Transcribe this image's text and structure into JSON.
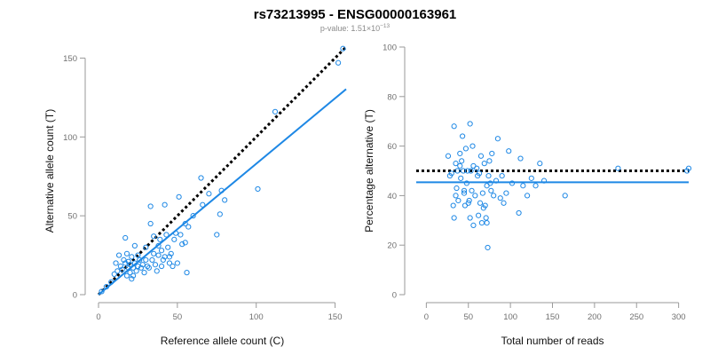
{
  "header": {
    "title": "rs73213995 - ENSG00000163961",
    "pvalue_prefix": "p-value: 1.51×10",
    "pvalue_exponent": "−13"
  },
  "chart_data": [
    {
      "type": "scatter",
      "title": "",
      "xlabel": "Reference allele count (C)",
      "ylabel": "Alternative allele count (T)",
      "xlim": [
        0,
        157
      ],
      "ylim": [
        0,
        157
      ],
      "xticks": [
        0,
        50,
        100,
        150
      ],
      "yticks": [
        0,
        50,
        100,
        150
      ],
      "grid": false,
      "marker_color": "#1e88e5",
      "points": [
        [
          2,
          2
        ],
        [
          5,
          5
        ],
        [
          8,
          8
        ],
        [
          10,
          13
        ],
        [
          11,
          20
        ],
        [
          12,
          15
        ],
        [
          13,
          25
        ],
        [
          14,
          18
        ],
        [
          15,
          16
        ],
        [
          16,
          22
        ],
        [
          17,
          36
        ],
        [
          17,
          20
        ],
        [
          18,
          12
        ],
        [
          18,
          26
        ],
        [
          19,
          17
        ],
        [
          19,
          21
        ],
        [
          20,
          14
        ],
        [
          20,
          19
        ],
        [
          21,
          10
        ],
        [
          21,
          24
        ],
        [
          22,
          12
        ],
        [
          22,
          17
        ],
        [
          23,
          31
        ],
        [
          23,
          20
        ],
        [
          24,
          15
        ],
        [
          25,
          18
        ],
        [
          25,
          25
        ],
        [
          26,
          22
        ],
        [
          27,
          17
        ],
        [
          28,
          19
        ],
        [
          29,
          14
        ],
        [
          30,
          30
        ],
        [
          30,
          22
        ],
        [
          31,
          18
        ],
        [
          32,
          17
        ],
        [
          33,
          56
        ],
        [
          33,
          45
        ],
        [
          34,
          22
        ],
        [
          35,
          37
        ],
        [
          35,
          26
        ],
        [
          36,
          19
        ],
        [
          37,
          15
        ],
        [
          38,
          25
        ],
        [
          38,
          31
        ],
        [
          39,
          35
        ],
        [
          40,
          28
        ],
        [
          40,
          18
        ],
        [
          41,
          22
        ],
        [
          42,
          57
        ],
        [
          42,
          24
        ],
        [
          43,
          38
        ],
        [
          44,
          30
        ],
        [
          45,
          20
        ],
        [
          45,
          24
        ],
        [
          46,
          26
        ],
        [
          47,
          18
        ],
        [
          48,
          35
        ],
        [
          49,
          39
        ],
        [
          50,
          20
        ],
        [
          51,
          62
        ],
        [
          52,
          38
        ],
        [
          53,
          32
        ],
        [
          55,
          45
        ],
        [
          55,
          33
        ],
        [
          56,
          14
        ],
        [
          57,
          43
        ],
        [
          60,
          50
        ],
        [
          65,
          74
        ],
        [
          66,
          57
        ],
        [
          70,
          64
        ],
        [
          75,
          38
        ],
        [
          77,
          51
        ],
        [
          78,
          66
        ],
        [
          80,
          60
        ],
        [
          101,
          67
        ],
        [
          112,
          116
        ],
        [
          152,
          147
        ],
        [
          155,
          156
        ]
      ],
      "lines": [
        {
          "label": "",
          "style": "dotted",
          "color": "#000000",
          "slope": 1.0,
          "intercept": 0
        },
        {
          "label": "",
          "style": "solid",
          "color": "#1e88e5",
          "slope": 0.83,
          "intercept": 0
        }
      ]
    },
    {
      "type": "scatter",
      "title": "",
      "xlabel": "Total number of reads",
      "ylabel": "Percentage alternative (T)",
      "xlim": [
        -12,
        312
      ],
      "ylim": [
        0,
        100
      ],
      "xticks": [
        0,
        50,
        100,
        150,
        200,
        250,
        300
      ],
      "yticks": [
        0,
        20,
        40,
        60,
        80,
        100
      ],
      "grid": false,
      "marker_color": "#1e88e5",
      "points": [
        [
          26,
          56
        ],
        [
          28,
          48
        ],
        [
          30,
          49
        ],
        [
          32,
          36
        ],
        [
          33,
          31
        ],
        [
          33,
          68
        ],
        [
          35,
          40
        ],
        [
          35,
          53
        ],
        [
          36,
          43
        ],
        [
          37,
          50
        ],
        [
          38,
          38
        ],
        [
          40,
          52
        ],
        [
          40,
          57
        ],
        [
          41,
          47
        ],
        [
          42,
          54
        ],
        [
          43,
          64
        ],
        [
          44,
          50
        ],
        [
          45,
          42
        ],
        [
          45,
          41
        ],
        [
          46,
          36
        ],
        [
          47,
          59
        ],
        [
          48,
          45
        ],
        [
          49,
          50
        ],
        [
          50,
          37
        ],
        [
          51,
          38
        ],
        [
          52,
          69
        ],
        [
          52,
          31
        ],
        [
          53,
          50
        ],
        [
          54,
          42
        ],
        [
          55,
          60
        ],
        [
          56,
          52
        ],
        [
          56,
          28
        ],
        [
          58,
          40
        ],
        [
          60,
          51
        ],
        [
          61,
          48
        ],
        [
          62,
          32
        ],
        [
          63,
          49
        ],
        [
          64,
          37
        ],
        [
          65,
          56
        ],
        [
          66,
          29
        ],
        [
          67,
          41
        ],
        [
          68,
          35
        ],
        [
          69,
          53
        ],
        [
          70,
          36
        ],
        [
          71,
          31
        ],
        [
          72,
          44
        ],
        [
          72,
          29
        ],
        [
          73,
          19
        ],
        [
          74,
          48
        ],
        [
          75,
          54
        ],
        [
          76,
          45
        ],
        [
          77,
          42
        ],
        [
          78,
          57
        ],
        [
          80,
          40
        ],
        [
          83,
          46
        ],
        [
          85,
          63
        ],
        [
          88,
          39
        ],
        [
          90,
          48
        ],
        [
          92,
          37
        ],
        [
          95,
          41
        ],
        [
          98,
          58
        ],
        [
          102,
          45
        ],
        [
          110,
          33
        ],
        [
          112,
          55
        ],
        [
          115,
          44
        ],
        [
          120,
          40
        ],
        [
          125,
          47
        ],
        [
          130,
          44
        ],
        [
          135,
          53
        ],
        [
          140,
          46
        ],
        [
          165,
          40
        ],
        [
          228,
          51
        ],
        [
          310,
          50
        ],
        [
          312,
          51
        ]
      ],
      "lines": [
        {
          "label": "",
          "style": "dotted",
          "color": "#000000",
          "value": 50
        },
        {
          "label": "",
          "style": "solid",
          "color": "#1e88e5",
          "value": 45.4
        }
      ]
    }
  ]
}
